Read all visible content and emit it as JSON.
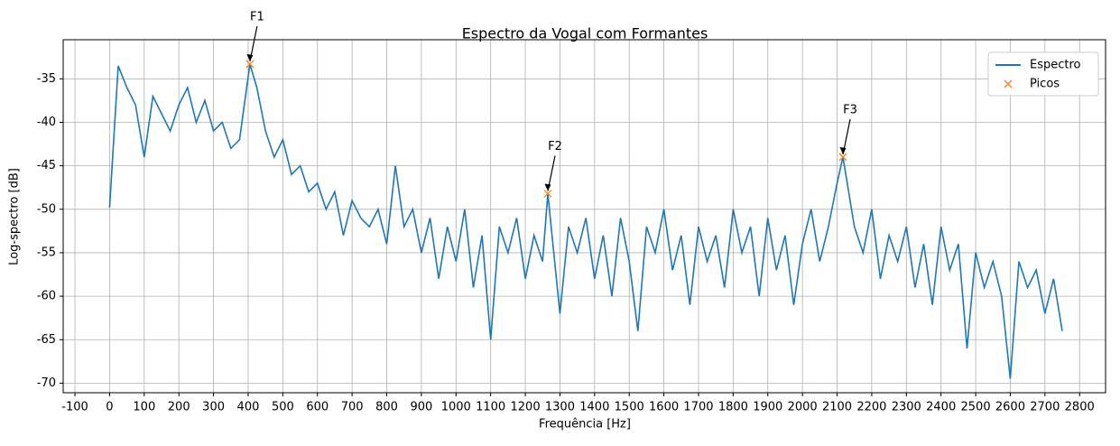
{
  "chart_data": {
    "type": "line",
    "title": "Espectro da Vogal com Formantes",
    "x_label": "Frequência [Hz]",
    "y_label": "Log-spectro [dB]",
    "xlim": [
      -134,
      2875
    ],
    "ylim": [
      -71.1,
      -30.5
    ],
    "xticks": [
      -100,
      0,
      100,
      200,
      300,
      400,
      500,
      600,
      700,
      800,
      900,
      1000,
      1100,
      1200,
      1300,
      1400,
      1500,
      1600,
      1700,
      1800,
      1900,
      2000,
      2100,
      2200,
      2300,
      2400,
      2500,
      2600,
      2700,
      2800
    ],
    "yticks": [
      -70,
      -65,
      -60,
      -55,
      -50,
      -45,
      -40,
      -35
    ],
    "grid": true,
    "legend": "upper right",
    "series": [
      {
        "name": "Espectro",
        "color": "#1f77b4",
        "marker": "none",
        "x": [
          0,
          25,
          50,
          75,
          100,
          125,
          150,
          175,
          200,
          225,
          250,
          275,
          300,
          325,
          350,
          375,
          405,
          425,
          450,
          475,
          500,
          525,
          550,
          575,
          600,
          625,
          650,
          675,
          700,
          725,
          750,
          775,
          800,
          825,
          850,
          875,
          900,
          925,
          950,
          975,
          1000,
          1025,
          1050,
          1075,
          1100,
          1125,
          1150,
          1175,
          1200,
          1225,
          1250,
          1265,
          1300,
          1325,
          1350,
          1375,
          1400,
          1425,
          1450,
          1475,
          1500,
          1525,
          1550,
          1575,
          1600,
          1625,
          1650,
          1675,
          1700,
          1725,
          1750,
          1775,
          1800,
          1825,
          1850,
          1875,
          1900,
          1925,
          1950,
          1975,
          2000,
          2025,
          2050,
          2075,
          2100,
          2117,
          2150,
          2175,
          2200,
          2225,
          2250,
          2275,
          2300,
          2325,
          2350,
          2375,
          2400,
          2425,
          2450,
          2475,
          2500,
          2525,
          2550,
          2575,
          2600,
          2625,
          2650,
          2675,
          2700,
          2725,
          2750
        ],
        "values": [
          -49.8,
          -33.5,
          -36,
          -38,
          -44,
          -37,
          -39,
          -41,
          -38,
          -36,
          -40,
          -37.5,
          -41,
          -40,
          -43,
          -42,
          -33.3,
          -36,
          -41,
          -44,
          -42,
          -46,
          -45,
          -48,
          -47,
          -50,
          -48,
          -53,
          -49,
          -51,
          -52,
          -50,
          -54,
          -45,
          -52,
          -50,
          -55,
          -51,
          -58,
          -52,
          -56,
          -50,
          -59,
          -53,
          -65,
          -52,
          -55,
          -51,
          -58,
          -53,
          -56,
          -48.2,
          -62,
          -52,
          -55,
          -51,
          -58,
          -53,
          -60,
          -51,
          -56,
          -64,
          -52,
          -55,
          -50,
          -57,
          -53,
          -61,
          -52,
          -56,
          -53,
          -59,
          -50,
          -55,
          -52,
          -60,
          -51,
          -57,
          -53,
          -61,
          -54,
          -50,
          -56,
          -52,
          -47,
          -44,
          -52,
          -55,
          -50,
          -58,
          -53,
          -56,
          -52,
          -59,
          -54,
          -61,
          -52,
          -57,
          -54,
          -66,
          -55,
          -59,
          -56,
          -60,
          -69.5,
          -56,
          -59,
          -57,
          -62,
          -58,
          -64
        ]
      },
      {
        "name": "Picos",
        "color": "#ff7f0e",
        "marker": "x",
        "x": [
          405,
          1265,
          2117
        ],
        "values": [
          -33.3,
          -48.2,
          -44
        ]
      }
    ],
    "annotations": [
      {
        "text": "F1",
        "x": 405,
        "y": -33.3
      },
      {
        "text": "F2",
        "x": 1265,
        "y": -48.2
      },
      {
        "text": "F3",
        "x": 2117,
        "y": -44
      }
    ]
  }
}
